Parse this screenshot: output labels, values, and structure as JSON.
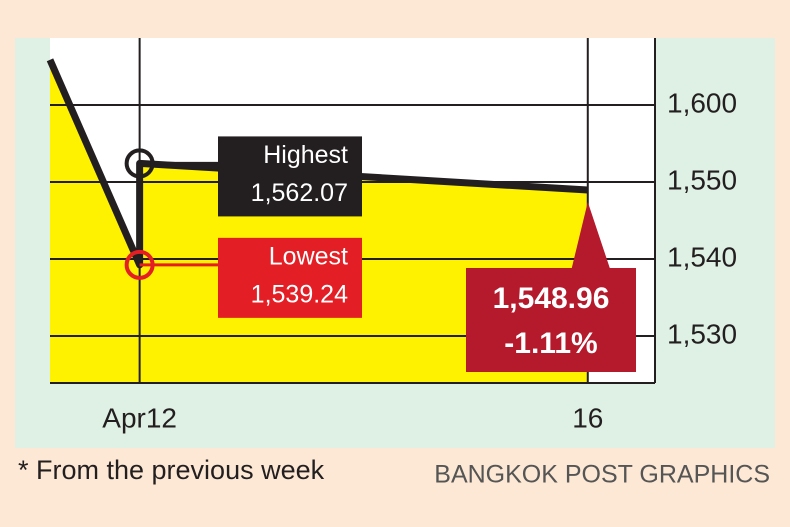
{
  "chart_data": {
    "type": "line",
    "x": [
      11.2,
      12,
      12,
      16
    ],
    "values": [
      1629,
      1539.24,
      1562.07,
      1548.96
    ],
    "value_labels": [
      null,
      "1,539.24",
      "1,562.07",
      "1,548.96"
    ],
    "point_names": [
      null,
      "Lowest",
      "Highest",
      null
    ],
    "change_label": "-1.11%",
    "xlim": [
      11.2,
      16.6
    ],
    "xticks": [
      {
        "value": 12,
        "label": "Apr12"
      },
      16
    ],
    "ylim": [
      1524,
      1643
    ],
    "yticks": [
      {
        "value": 1530,
        "label": "1,530"
      },
      {
        "value": 1540,
        "label": "1,540"
      },
      {
        "value": 1550,
        "label": "1,550"
      },
      {
        "value": 1600,
        "label": "1,600"
      }
    ],
    "grid": true,
    "color": "#231f20",
    "area_color": "#fff200",
    "footnote": "* From the previous week",
    "source": "BANGKOK POST GRAPHICS"
  }
}
